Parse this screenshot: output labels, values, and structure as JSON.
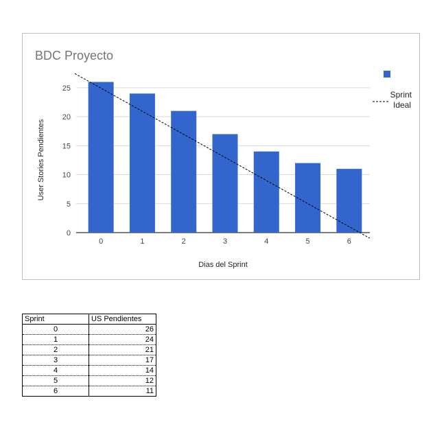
{
  "chart_data": {
    "type": "bar",
    "title": "BDC Proyecto",
    "xlabel": "Dias del Sprint",
    "ylabel": "User Stories Pendientes",
    "categories": [
      "0",
      "1",
      "2",
      "3",
      "4",
      "5",
      "6"
    ],
    "series": [
      {
        "name": "",
        "values": [
          26,
          24,
          21,
          17,
          14,
          12,
          11
        ],
        "color": "#3366cc"
      }
    ],
    "ideal_line": {
      "name": "Sprint Ideal",
      "from": 26.5,
      "to": -0.5,
      "style": "dashed",
      "color": "#000000"
    },
    "ylim": [
      0,
      27
    ],
    "yticks": [
      0,
      5,
      10,
      15,
      20,
      25
    ],
    "grid": true,
    "legend": "right"
  },
  "table": {
    "headers": [
      "Sprint",
      "US Pendientes"
    ],
    "rows": [
      [
        "0",
        "26"
      ],
      [
        "1",
        "24"
      ],
      [
        "2",
        "21"
      ],
      [
        "3",
        "17"
      ],
      [
        "4",
        "14"
      ],
      [
        "5",
        "12"
      ],
      [
        "6",
        "11"
      ]
    ]
  }
}
